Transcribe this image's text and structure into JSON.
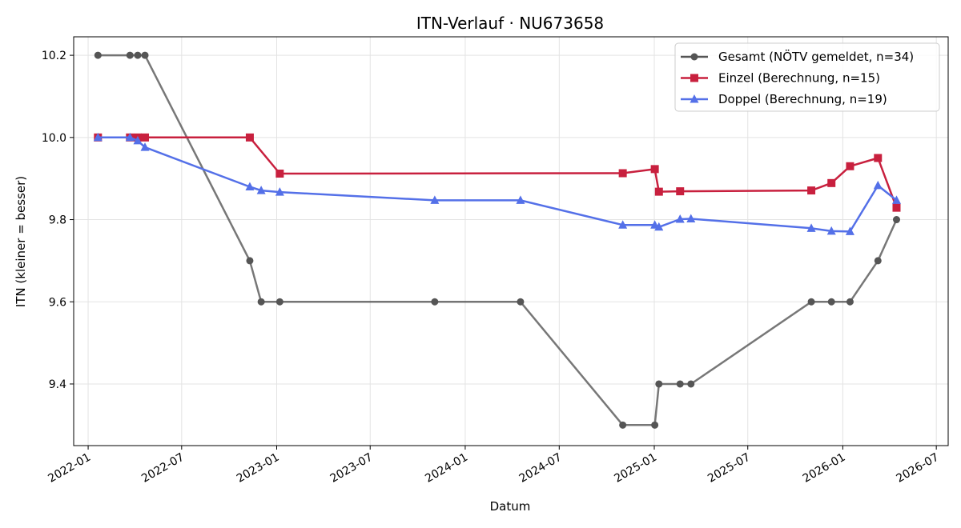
{
  "chart_data": {
    "type": "line",
    "title": "ITN-Verlauf · NU673658",
    "xlabel": "Datum",
    "ylabel": "ITN  (kleiner = besser)",
    "x_axis_type": "date",
    "xlim": [
      "2021-12-04",
      "2026-07-24"
    ],
    "ylim": [
      9.25,
      10.245
    ],
    "x_ticks": [
      "2022-01-01",
      "2022-07-01",
      "2023-01-01",
      "2023-07-01",
      "2024-01-01",
      "2024-07-01",
      "2025-01-01",
      "2025-07-01",
      "2026-01-01",
      "2026-07-01"
    ],
    "x_tick_labels": [
      "2022-01",
      "2022-07",
      "2023-01",
      "2023-07",
      "2024-01",
      "2024-07",
      "2025-01",
      "2025-07",
      "2026-01",
      "2026-07"
    ],
    "y_ticks": [
      9.4,
      9.6,
      9.8,
      10.0,
      10.2
    ],
    "y_tick_labels": [
      "9.4",
      "9.6",
      "9.8",
      "10.0",
      "10.2"
    ],
    "grid": true,
    "legend_position": "top-right",
    "series": [
      {
        "name": "Gesamt (NÖTV gemeldet, n=34)",
        "color": "#555555",
        "marker": "circle",
        "points": [
          [
            "2022-01-20",
            10.2
          ],
          [
            "2022-03-23",
            10.2
          ],
          [
            "2022-04-07",
            10.2
          ],
          [
            "2022-04-21",
            10.2
          ],
          [
            "2022-11-10",
            9.7
          ],
          [
            "2022-12-02",
            9.6
          ],
          [
            "2023-01-07",
            9.6
          ],
          [
            "2023-11-03",
            9.6
          ],
          [
            "2024-04-17",
            9.6
          ],
          [
            "2024-11-01",
            9.3
          ],
          [
            "2025-01-02",
            9.3
          ],
          [
            "2025-01-10",
            9.4
          ],
          [
            "2025-02-20",
            9.4
          ],
          [
            "2025-03-13",
            9.4
          ],
          [
            "2025-11-01",
            9.6
          ],
          [
            "2025-12-10",
            9.6
          ],
          [
            "2026-01-15",
            9.6
          ],
          [
            "2026-03-10",
            9.7
          ],
          [
            "2026-04-15",
            9.8
          ]
        ]
      },
      {
        "name": "Einzel (Berechnung, n=15)",
        "color": "#c8203e",
        "marker": "square",
        "points": [
          [
            "2022-01-20",
            10.0
          ],
          [
            "2022-03-23",
            10.0
          ],
          [
            "2022-04-07",
            10.0
          ],
          [
            "2022-04-21",
            10.0
          ],
          [
            "2022-11-10",
            10.0
          ],
          [
            "2023-01-07",
            9.912
          ],
          [
            "2024-11-01",
            9.913
          ],
          [
            "2025-01-02",
            9.923
          ],
          [
            "2025-01-10",
            9.868
          ],
          [
            "2025-02-20",
            9.869
          ],
          [
            "2025-11-01",
            9.871
          ],
          [
            "2025-12-10",
            9.889
          ],
          [
            "2026-01-15",
            9.93
          ],
          [
            "2026-03-10",
            9.95
          ],
          [
            "2026-04-15",
            9.829
          ]
        ]
      },
      {
        "name": "Doppel (Berechnung, n=19)",
        "color": "#5470e8",
        "marker": "triangle",
        "points": [
          [
            "2022-01-20",
            10.0
          ],
          [
            "2022-03-23",
            10.0
          ],
          [
            "2022-04-07",
            9.992
          ],
          [
            "2022-04-21",
            9.976
          ],
          [
            "2022-11-10",
            9.88
          ],
          [
            "2022-12-02",
            9.871
          ],
          [
            "2023-01-07",
            9.867
          ],
          [
            "2023-11-03",
            9.847
          ],
          [
            "2024-04-17",
            9.847
          ],
          [
            "2024-11-01",
            9.787
          ],
          [
            "2025-01-02",
            9.787
          ],
          [
            "2025-01-10",
            9.782
          ],
          [
            "2025-02-20",
            9.801
          ],
          [
            "2025-03-13",
            9.802
          ],
          [
            "2025-11-01",
            9.779
          ],
          [
            "2025-12-10",
            9.772
          ],
          [
            "2026-01-15",
            9.771
          ],
          [
            "2026-03-10",
            9.883
          ],
          [
            "2026-04-15",
            9.847
          ]
        ]
      }
    ]
  }
}
